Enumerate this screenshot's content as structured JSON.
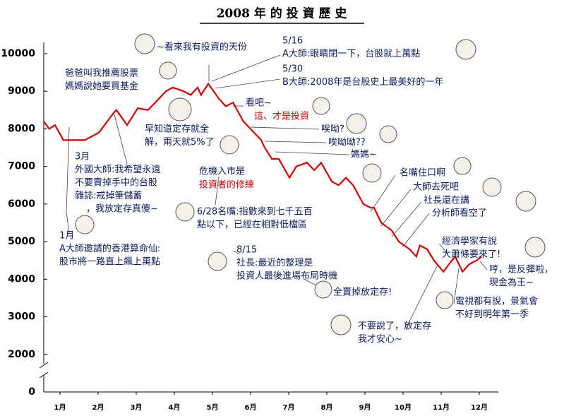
{
  "chart_data": {
    "type": "line",
    "title": "2008 年 的 投 資 歷 史",
    "x": [
      0.57,
      0.72,
      0.87,
      1.09,
      1.28,
      1.65,
      2.02,
      2.39,
      2.48,
      2.76,
      3.04,
      3.31,
      3.5,
      3.78,
      3.96,
      4.24,
      4.43,
      4.61,
      4.7,
      4.89,
      5.17,
      5.35,
      5.54,
      5.81,
      6.09,
      6.28,
      6.37,
      6.56,
      6.74,
      7.02,
      7.2,
      7.48,
      7.67,
      7.85,
      8.13,
      8.31,
      8.5,
      8.69,
      8.96,
      9.15,
      9.24,
      9.43,
      9.7,
      9.89,
      10.17,
      10.35,
      10.44,
      10.63,
      10.81,
      11.06,
      11.28,
      11.37,
      11.56,
      11.74,
      11.93,
      12.06
    ],
    "series": [
      {
        "color": "#d00000",
        "values": [
          8200,
          8000,
          8100,
          7700,
          7700,
          7700,
          7900,
          8400,
          8500,
          8100,
          8550,
          8500,
          8700,
          9000,
          9100,
          9000,
          8900,
          9100,
          8900,
          9200,
          8800,
          8600,
          8700,
          8200,
          7900,
          7700,
          7500,
          7200,
          7200,
          6700,
          7000,
          7100,
          6900,
          7100,
          6600,
          6500,
          6700,
          6500,
          6000,
          5900,
          5900,
          5500,
          5300,
          5000,
          4800,
          4600,
          4900,
          4800,
          4500,
          4200,
          4500,
          4600,
          4200,
          4400,
          4500,
          4600
        ]
      }
    ],
    "xlim": [
      0.5,
      12.5
    ],
    "xticks": [
      {
        "value": 1,
        "label": "1月"
      },
      {
        "value": 2,
        "label": "2月"
      },
      {
        "value": 3,
        "label": "3月"
      },
      {
        "value": 4,
        "label": "4月"
      },
      {
        "value": 5,
        "label": "5月"
      },
      {
        "value": 6,
        "label": "6月"
      },
      {
        "value": 7,
        "label": "7月"
      },
      {
        "value": 8,
        "label": "8月"
      },
      {
        "value": 9,
        "label": "9月"
      },
      {
        "value": 10,
        "label": "10月"
      },
      {
        "value": 11,
        "label": "11月"
      },
      {
        "value": 12,
        "label": "12月"
      }
    ],
    "ylim": [
      1000,
      10300
    ],
    "yticks": [
      0,
      2000,
      3000,
      4000,
      5000,
      6000,
      7000,
      8000,
      9000,
      10000
    ],
    "annotations": [
      {
        "lines": [
          "~看來我有投資的天份"
        ]
      },
      {
        "lines": [
          "5/16",
          "A大師:眼睛閉一下，台股就上萬點"
        ]
      },
      {
        "lines": [
          "5/30",
          "B大師:2008年是台股史上最美好的一年"
        ]
      },
      {
        "lines": [
          "爸爸叫我推薦股票",
          "媽媽說她要買基金"
        ]
      },
      {
        "lines": [
          "看吧~"
        ]
      },
      {
        "lines": [
          "這、才是投資"
        ],
        "color": "#d00000"
      },
      {
        "lines": [
          "早知道定存就全",
          "解，兩天就5%了"
        ]
      },
      {
        "lines": [
          "唉呦?"
        ]
      },
      {
        "lines": [
          "唉呦呦??"
        ]
      },
      {
        "lines": [
          "媽媽~"
        ]
      },
      {
        "lines": [
          "3月",
          "外國大師:我希望永遠",
          "不要賣掉手中的台股",
          "雜誌:戒掉筆儲蓄",
          "，我放定存真傻~"
        ]
      },
      {
        "lines": [
          "危機入市是"
        ]
      },
      {
        "lines": [
          "投資者的修練"
        ],
        "color": "#d00000"
      },
      {
        "lines": [
          "名嘴住口啊"
        ]
      },
      {
        "lines": [
          "大師去死吧"
        ]
      },
      {
        "lines": [
          "社長還在講"
        ]
      },
      {
        "lines": [
          "分析師看空了"
        ]
      },
      {
        "lines": [
          "6/28名嘴:指數來到七千五百",
          "點以下，已經在相對低檔區"
        ]
      },
      {
        "lines": [
          "1月",
          "A大師邀請的香港算命仙:",
          "股市將一路直上飆上萬點"
        ]
      },
      {
        "lines": [
          "8/15",
          "社長:最近的整理是",
          "投資人最後進場布局時機"
        ]
      },
      {
        "lines": [
          "經濟學家有說",
          "大蕭條要來了!"
        ]
      },
      {
        "lines": [
          "哼，是反彈啦，",
          "現金為王~"
        ]
      },
      {
        "lines": [
          "全賣掉放定存!"
        ]
      },
      {
        "lines": [
          "電視都有說，景氣會",
          "不好到明年第一季"
        ]
      },
      {
        "lines": [
          "不要說了，放定存",
          "我才安心~"
        ]
      }
    ]
  }
}
